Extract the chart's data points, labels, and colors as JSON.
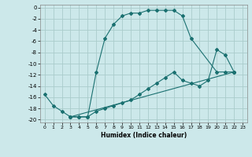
{
  "xlabel": "Humidex (Indice chaleur)",
  "background_color": "#cce8ea",
  "grid_color": "#aacccc",
  "line_color": "#1a7070",
  "xlim": [
    -0.5,
    23.5
  ],
  "ylim": [
    -20.5,
    0.5
  ],
  "xticks": [
    0,
    1,
    2,
    3,
    4,
    5,
    6,
    7,
    8,
    9,
    10,
    11,
    12,
    13,
    14,
    15,
    16,
    17,
    18,
    19,
    20,
    21,
    22,
    23
  ],
  "yticks": [
    0,
    -2,
    -4,
    -6,
    -8,
    -10,
    -12,
    -14,
    -16,
    -18,
    -20
  ],
  "line1_x": [
    0,
    1,
    2,
    3,
    4,
    5,
    6,
    7,
    8,
    9,
    10,
    11,
    12,
    13,
    14,
    15,
    16,
    17,
    20,
    21,
    22
  ],
  "line1_y": [
    -15.5,
    -17.5,
    -18.5,
    -19.5,
    -19.5,
    -19.5,
    -11.5,
    -5.5,
    -3.0,
    -1.5,
    -1.0,
    -1.0,
    -0.5,
    -0.5,
    -0.5,
    -0.5,
    -1.5,
    -5.5,
    -11.5,
    -11.5,
    -11.5
  ],
  "line2_x": [
    3,
    4,
    5,
    6,
    7,
    8,
    9,
    10,
    11,
    12,
    13,
    14,
    15,
    16,
    17,
    18,
    19,
    20,
    21,
    22
  ],
  "line2_y": [
    -19.5,
    -19.5,
    -19.5,
    -18.5,
    -18.0,
    -17.5,
    -17.0,
    -16.5,
    -15.5,
    -14.5,
    -13.5,
    -12.5,
    -11.5,
    -13.0,
    -13.5,
    -14.0,
    -13.0,
    -7.5,
    -8.5,
    -11.5
  ],
  "line3_x": [
    3,
    22
  ],
  "line3_y": [
    -19.5,
    -11.5
  ]
}
